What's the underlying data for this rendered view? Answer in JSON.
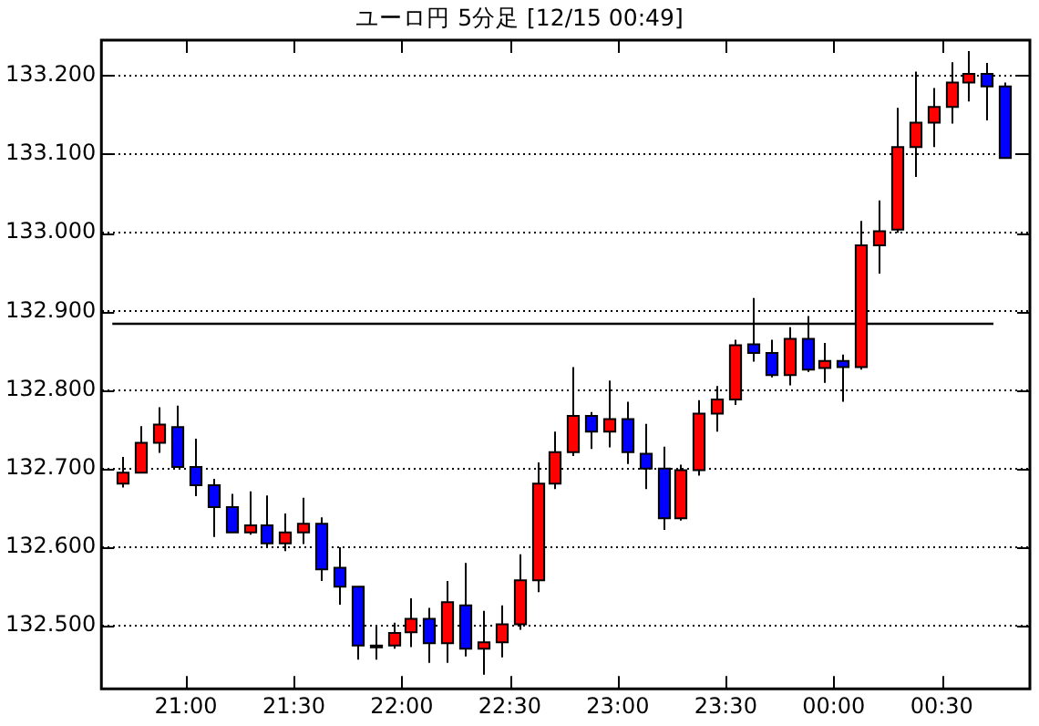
{
  "chart_data": {
    "type": "candlestick",
    "title": "ユーロ円 5分足 [12/15 00:49]",
    "x": [
      "--12-14T20:42:30",
      "--12-14T20:47:30",
      "--12-14T20:52:30",
      "--12-14T20:57:30",
      "--12-14T21:02:30",
      "--12-14T21:07:30",
      "--12-14T21:12:30",
      "--12-14T21:17:30",
      "--12-14T21:22:30",
      "--12-14T21:27:30",
      "--12-14T21:32:30",
      "--12-14T21:37:30",
      "--12-14T21:42:30",
      "--12-14T21:47:30",
      "--12-14T21:52:30",
      "--12-14T21:57:30",
      "--12-14T22:02:30",
      "--12-14T22:07:30",
      "--12-14T22:12:30",
      "--12-14T22:17:30",
      "--12-14T22:22:30",
      "--12-14T22:27:30",
      "--12-14T22:32:30",
      "--12-14T22:37:30",
      "--12-14T22:42:30",
      "--12-14T22:47:30",
      "--12-14T22:52:30",
      "--12-14T22:57:30",
      "--12-14T23:02:30",
      "--12-14T23:07:30",
      "--12-14T23:12:30",
      "--12-14T23:17:30",
      "--12-14T23:22:30",
      "--12-14T23:27:30",
      "--12-14T23:32:30",
      "--12-14T23:37:30",
      "--12-14T23:42:30",
      "--12-14T23:47:30",
      "--12-14T23:52:30",
      "--12-14T23:57:30",
      "--12-15T00:02:30",
      "--12-15T00:07:30",
      "--12-15T00:12:30",
      "--12-15T00:17:30",
      "--12-15T00:22:30",
      "--12-15T00:27:30",
      "--12-15T00:32:30",
      "--12-15T00:37:30",
      "--12-15T00:42:30",
      "--12-15T00:47:30"
    ],
    "ohlc": [
      [
        132.681,
        132.715,
        132.676,
        132.695
      ],
      [
        132.695,
        132.754,
        132.695,
        132.733
      ],
      [
        132.733,
        132.778,
        132.72,
        132.756
      ],
      [
        132.753,
        132.78,
        132.702,
        132.702
      ],
      [
        132.702,
        132.738,
        132.665,
        132.679
      ],
      [
        132.679,
        132.687,
        132.613,
        132.651
      ],
      [
        132.651,
        132.668,
        132.619,
        132.619
      ],
      [
        132.619,
        132.671,
        132.616,
        132.628
      ],
      [
        132.628,
        132.666,
        132.601,
        132.605
      ],
      [
        132.605,
        132.643,
        132.595,
        132.619
      ],
      [
        132.619,
        132.663,
        132.604,
        132.63
      ],
      [
        132.63,
        132.638,
        132.557,
        132.572
      ],
      [
        132.574,
        132.6,
        132.527,
        132.55
      ],
      [
        132.55,
        132.55,
        132.457,
        132.475
      ],
      [
        132.475,
        132.5,
        132.457,
        132.475
      ],
      [
        132.475,
        132.504,
        132.471,
        132.491
      ],
      [
        132.492,
        132.535,
        132.473,
        132.509
      ],
      [
        132.509,
        132.523,
        132.453,
        132.478
      ],
      [
        132.478,
        132.557,
        132.453,
        132.53
      ],
      [
        132.526,
        132.58,
        132.461,
        132.471
      ],
      [
        132.471,
        132.519,
        132.438,
        132.479
      ],
      [
        132.479,
        132.526,
        132.46,
        132.502
      ],
      [
        132.502,
        132.591,
        132.495,
        132.558
      ],
      [
        132.558,
        132.708,
        132.543,
        132.681
      ],
      [
        132.681,
        132.747,
        132.674,
        132.721
      ],
      [
        132.721,
        132.829,
        132.716,
        132.767
      ],
      [
        132.767,
        132.772,
        132.725,
        132.747
      ],
      [
        132.747,
        132.812,
        132.727,
        132.763
      ],
      [
        132.763,
        132.785,
        132.706,
        132.721
      ],
      [
        132.719,
        132.757,
        132.674,
        132.7
      ],
      [
        132.7,
        132.728,
        132.622,
        132.637
      ],
      [
        132.637,
        132.705,
        132.634,
        132.698
      ],
      [
        132.698,
        132.787,
        132.691,
        132.77
      ],
      [
        132.77,
        132.805,
        132.747,
        132.788
      ],
      [
        132.788,
        132.864,
        132.781,
        132.857
      ],
      [
        132.858,
        132.917,
        132.836,
        132.847
      ],
      [
        132.847,
        132.864,
        132.816,
        132.819
      ],
      [
        132.819,
        132.88,
        132.806,
        132.865
      ],
      [
        132.865,
        132.894,
        132.823,
        132.826
      ],
      [
        132.828,
        132.86,
        132.809,
        132.837
      ],
      [
        132.837,
        132.845,
        132.785,
        132.829
      ],
      [
        132.829,
        133.015,
        132.826,
        132.984
      ],
      [
        132.984,
        133.041,
        132.948,
        133.002
      ],
      [
        133.004,
        133.159,
        133.0,
        133.109
      ],
      [
        133.109,
        133.205,
        133.071,
        133.14
      ],
      [
        133.14,
        133.184,
        133.109,
        133.16
      ],
      [
        133.16,
        133.217,
        133.139,
        133.191
      ],
      [
        133.191,
        133.231,
        133.167,
        133.202
      ],
      [
        133.202,
        133.216,
        133.143,
        133.186
      ],
      [
        133.186,
        133.191,
        133.095,
        133.095
      ]
    ],
    "colors": [
      "#ff0000",
      "#ff0000",
      "#ff0000",
      "#0000ff",
      "#0000ff",
      "#0000ff",
      "#0000ff",
      "#ff0000",
      "#0000ff",
      "#ff0000",
      "#ff0000",
      "#0000ff",
      "#0000ff",
      "#0000ff",
      "#ff0000",
      "#ff0000",
      "#ff0000",
      "#0000ff",
      "#ff0000",
      "#0000ff",
      "#ff0000",
      "#ff0000",
      "#ff0000",
      "#ff0000",
      "#ff0000",
      "#ff0000",
      "#0000ff",
      "#ff0000",
      "#0000ff",
      "#0000ff",
      "#0000ff",
      "#ff0000",
      "#ff0000",
      "#ff0000",
      "#ff0000",
      "#0000ff",
      "#0000ff",
      "#ff0000",
      "#0000ff",
      "#ff0000",
      "#0000ff",
      "#ff0000",
      "#ff0000",
      "#ff0000",
      "#ff0000",
      "#ff0000",
      "#ff0000",
      "#ff0000",
      "#0000ff",
      "#0000ff"
    ],
    "xlim": [
      "--12-14T20:36:30",
      "--12-15T00:54:30"
    ],
    "xticks": [
      {
        "value": "--12-14T21:00",
        "label": "21:00"
      },
      {
        "value": "--12-14T21:30",
        "label": "21:30"
      },
      {
        "value": "--12-14T22:00",
        "label": "22:00"
      },
      {
        "value": "--12-14T22:30",
        "label": "22:30"
      },
      {
        "value": "--12-14T23:00",
        "label": "23:00"
      },
      {
        "value": "--12-14T23:30",
        "label": "23:30"
      },
      {
        "value": "--12-15T00:00",
        "label": "00:00"
      },
      {
        "value": "--12-15T00:30",
        "label": "00:30"
      }
    ],
    "ylim": [
      132.42,
      133.245
    ],
    "yticks": [
      {
        "value": 132.5,
        "label": "132.500"
      },
      {
        "value": 132.6,
        "label": "132.600"
      },
      {
        "value": 132.7,
        "label": "132.700"
      },
      {
        "value": 132.8,
        "label": "132.800"
      },
      {
        "value": 132.9,
        "label": "132.900"
      },
      {
        "value": 133.0,
        "label": "133.000"
      },
      {
        "value": 133.1,
        "label": "133.100"
      },
      {
        "value": 133.2,
        "label": "133.200"
      }
    ],
    "ref_lines": [
      {
        "axis": "y",
        "value": 132.885,
        "color": "#000000",
        "line_style": "solid"
      }
    ],
    "grid": "y",
    "legend": false
  }
}
